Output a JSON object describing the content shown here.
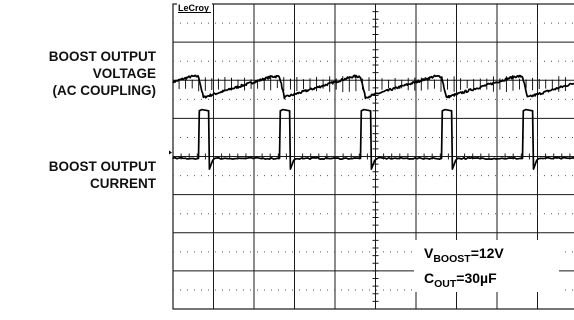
{
  "chart_data": {
    "type": "line",
    "brand": "LeCroy",
    "grid": {
      "divisions_x": 10,
      "divisions_y": 8
    },
    "series": [
      {
        "name": "BOOST OUTPUT VOLTAGE (AC COUPLING)",
        "label_lines": [
          "BOOST OUTPUT",
          "VOLTAGE",
          "(AC COUPLING)"
        ],
        "period_div": 2.0,
        "first_edge_div": 0.63,
        "waveform": "sawtooth ripple",
        "min_div": -0.35,
        "max_div": 0.2,
        "offset_div": 1.9
      },
      {
        "name": "BOOST OUTPUT CURRENT",
        "label_lines": [
          "BOOST OUTPUT",
          "CURRENT"
        ],
        "period_div": 2.0,
        "first_edge_div": 0.63,
        "pulse_width_div": 0.25,
        "baseline_div": 0.0,
        "peak_div": 1.25,
        "undershoot_div": -0.28,
        "offset_div": -0.05
      }
    ],
    "annotations": [
      {
        "main": "V",
        "sub": "BOOST",
        "suffix": "=12V"
      },
      {
        "main": "C",
        "sub": "OUT",
        "suffix": "=30µF"
      }
    ]
  }
}
